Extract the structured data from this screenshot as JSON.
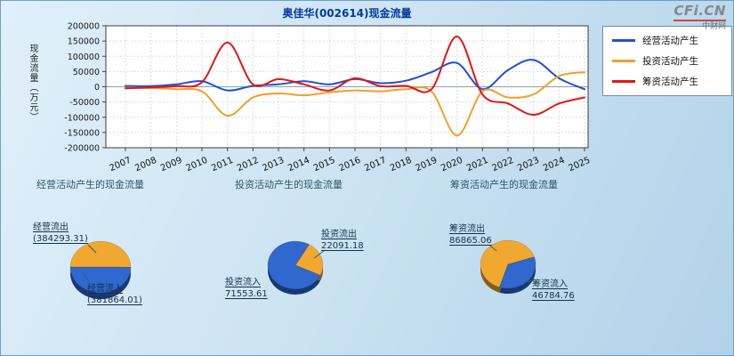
{
  "logo": {
    "brand": "CFi.CN",
    "site": "中财网"
  },
  "chart_data": [
    {
      "type": "line",
      "title": "奥佳华(002614)现金流量",
      "ylabel": "现金流量（万元）",
      "xlabel": "",
      "ylim": [
        -200000,
        200000
      ],
      "yticks": [
        200000,
        150000,
        100000,
        50000,
        0,
        -50000,
        -100000,
        -150000,
        -200000
      ],
      "x": [
        2007,
        2008,
        2009,
        2010,
        2011,
        2012,
        2013,
        2014,
        2015,
        2016,
        2017,
        2018,
        2019,
        2020,
        2021,
        2022,
        2023,
        2024,
        2025
      ],
      "grid": true,
      "legend_position": "top-right",
      "series": [
        {
          "name": "经营活动产生",
          "color": "#2050d0",
          "values": [
            3000,
            2000,
            8000,
            18000,
            -12000,
            3000,
            8000,
            18000,
            8000,
            25000,
            12000,
            20000,
            48000,
            78000,
            -8000,
            55000,
            88000,
            28000,
            -8000
          ]
        },
        {
          "name": "投资活动产生",
          "color": "#f0a028",
          "values": [
            -3000,
            -4000,
            -8000,
            -15000,
            -95000,
            -35000,
            -22000,
            -28000,
            -18000,
            -12000,
            -15000,
            -8000,
            -15000,
            -160000,
            -15000,
            -35000,
            -25000,
            35000,
            48000
          ]
        },
        {
          "name": "筹资活动产生",
          "color": "#e61414",
          "values": [
            -5000,
            -2000,
            2000,
            15000,
            145000,
            8000,
            25000,
            8000,
            -12000,
            28000,
            2000,
            3000,
            -8000,
            165000,
            -25000,
            -55000,
            -92000,
            -55000,
            -35000
          ]
        }
      ]
    },
    {
      "type": "pie",
      "title": "经营活动产生的现金流量",
      "slices": [
        {
          "label": "经营流出",
          "value": 384293.31,
          "value_label": "(384293.31)",
          "color": "#f0a830"
        },
        {
          "label": "经营流入",
          "value": 381864.01,
          "value_label": "(381864.01)",
          "color": "#3068d0"
        }
      ]
    },
    {
      "type": "pie",
      "title": "投资活动产生的现金流量",
      "slices": [
        {
          "label": "投资流出",
          "value": 22091.18,
          "value_label": "22091.18",
          "color": "#f0a830"
        },
        {
          "label": "投资流入",
          "value": 71553.61,
          "value_label": "71553.61",
          "color": "#3068d0"
        }
      ]
    },
    {
      "type": "pie",
      "title": "筹资活动产生的现金流量",
      "slices": [
        {
          "label": "筹资流出",
          "value": 86865.06,
          "value_label": "86865.06",
          "color": "#f0a830"
        },
        {
          "label": "筹资流入",
          "value": 46784.76,
          "value_label": "46784.76",
          "color": "#3068d0"
        }
      ]
    }
  ]
}
